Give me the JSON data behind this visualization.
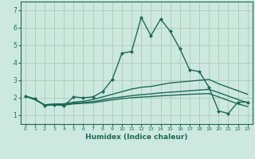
{
  "xlabel": "Humidex (Indice chaleur)",
  "bg_color": "#cde8de",
  "grid_color": "#aaccbb",
  "line_color": "#1a6b5a",
  "xlim": [
    -0.5,
    23.5
  ],
  "ylim": [
    0.5,
    7.5
  ],
  "xticks": [
    0,
    1,
    2,
    3,
    4,
    5,
    6,
    7,
    8,
    9,
    10,
    11,
    12,
    13,
    14,
    15,
    16,
    17,
    18,
    19,
    20,
    21,
    22,
    23
  ],
  "yticks": [
    1,
    2,
    3,
    4,
    5,
    6,
    7
  ],
  "lines": [
    {
      "x": [
        0,
        1,
        2,
        3,
        4,
        5,
        6,
        7,
        8,
        9,
        10,
        11,
        12,
        13,
        14,
        15,
        16,
        17,
        18,
        19,
        20,
        21,
        22,
        23
      ],
      "y": [
        2.1,
        1.95,
        1.55,
        1.6,
        1.55,
        2.05,
        2.0,
        2.05,
        2.35,
        3.05,
        4.55,
        4.65,
        6.6,
        5.55,
        6.5,
        5.8,
        4.8,
        3.6,
        3.5,
        2.6,
        1.25,
        1.1,
        1.75,
        1.75
      ],
      "marker": "D",
      "markersize": 2.0,
      "linewidth": 1.0
    },
    {
      "x": [
        0,
        1,
        2,
        3,
        4,
        5,
        6,
        7,
        8,
        9,
        10,
        11,
        12,
        13,
        14,
        15,
        16,
        17,
        18,
        19,
        20,
        21,
        22,
        23
      ],
      "y": [
        2.1,
        1.9,
        1.6,
        1.65,
        1.65,
        1.75,
        1.8,
        1.9,
        2.05,
        2.2,
        2.35,
        2.5,
        2.6,
        2.65,
        2.75,
        2.85,
        2.9,
        2.95,
        3.0,
        3.05,
        2.8,
        2.6,
        2.4,
        2.2
      ],
      "marker": null,
      "linewidth": 1.0
    },
    {
      "x": [
        0,
        1,
        2,
        3,
        4,
        5,
        6,
        7,
        8,
        9,
        10,
        11,
        12,
        13,
        14,
        15,
        16,
        17,
        18,
        19,
        20,
        21,
        22,
        23
      ],
      "y": [
        2.1,
        1.9,
        1.6,
        1.62,
        1.62,
        1.7,
        1.73,
        1.78,
        1.88,
        1.98,
        2.05,
        2.12,
        2.18,
        2.22,
        2.28,
        2.32,
        2.36,
        2.4,
        2.44,
        2.48,
        2.3,
        2.1,
        1.9,
        1.72
      ],
      "marker": null,
      "linewidth": 1.0
    },
    {
      "x": [
        0,
        1,
        2,
        3,
        4,
        5,
        6,
        7,
        8,
        9,
        10,
        11,
        12,
        13,
        14,
        15,
        16,
        17,
        18,
        19,
        20,
        21,
        22,
        23
      ],
      "y": [
        2.1,
        1.9,
        1.58,
        1.6,
        1.58,
        1.65,
        1.68,
        1.72,
        1.8,
        1.88,
        1.95,
        2.0,
        2.04,
        2.07,
        2.11,
        2.14,
        2.17,
        2.2,
        2.22,
        2.24,
        2.05,
        1.85,
        1.65,
        1.5
      ],
      "marker": null,
      "linewidth": 1.0
    }
  ]
}
